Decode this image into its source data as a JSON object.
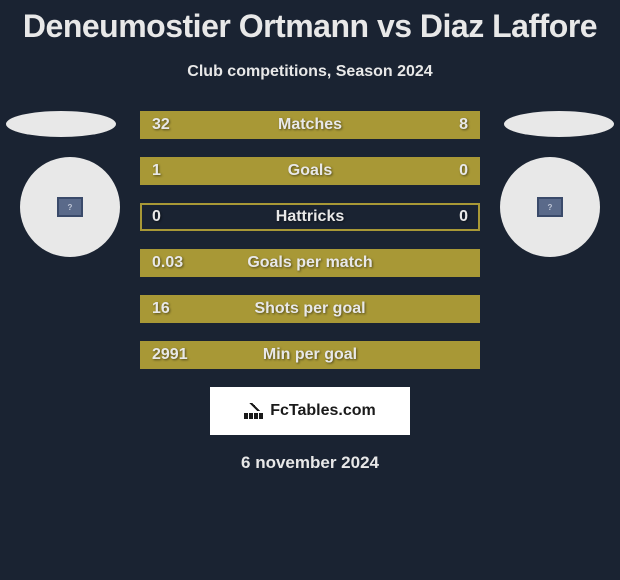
{
  "title": "Deneumostier Ortmann vs Diaz Laffore",
  "subtitle": "Club competitions, Season 2024",
  "colors": {
    "background": "#1a2332",
    "bar_fill": "#a89836",
    "bar_border": "#a89836",
    "text": "#e8e8e8",
    "avatar_bg": "#e8e8e8"
  },
  "stats": [
    {
      "label": "Matches",
      "left_val": "32",
      "right_val": "8",
      "left_pct": 80,
      "right_pct": 20
    },
    {
      "label": "Goals",
      "left_val": "1",
      "right_val": "0",
      "left_pct": 100,
      "right_pct": 0
    },
    {
      "label": "Hattricks",
      "left_val": "0",
      "right_val": "0",
      "left_pct": 0,
      "right_pct": 0
    },
    {
      "label": "Goals per match",
      "left_val": "0.03",
      "right_val": "",
      "left_pct": 100,
      "right_pct": 0
    },
    {
      "label": "Shots per goal",
      "left_val": "16",
      "right_val": "",
      "left_pct": 100,
      "right_pct": 0
    },
    {
      "label": "Min per goal",
      "left_val": "2991",
      "right_val": "",
      "left_pct": 100,
      "right_pct": 0
    }
  ],
  "logo_text": "FcTables.com",
  "date": "6 november 2024"
}
